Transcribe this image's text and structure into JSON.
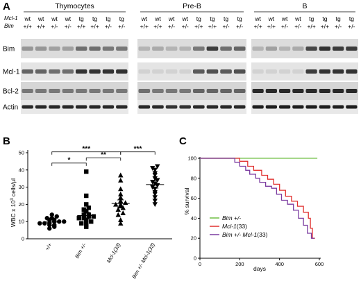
{
  "panels": {
    "a": {
      "letter": "A",
      "row_headers": [
        "Mcl-1",
        "Bim"
      ],
      "groups": [
        {
          "title": "Thymocytes",
          "lanes": [
            {
              "mcl1": "wt",
              "bim": "+/+"
            },
            {
              "mcl1": "wt",
              "bim": "+/+"
            },
            {
              "mcl1": "wt",
              "bim": "+/-"
            },
            {
              "mcl1": "wt",
              "bim": "+/-"
            },
            {
              "mcl1": "tg",
              "bim": "+/+"
            },
            {
              "mcl1": "tg",
              "bim": "+/+"
            },
            {
              "mcl1": "tg",
              "bim": "+/-"
            },
            {
              "mcl1": "tg",
              "bim": "+/-"
            }
          ]
        },
        {
          "title": "Pre-B",
          "lanes": [
            {
              "mcl1": "wt",
              "bim": "+/+"
            },
            {
              "mcl1": "wt",
              "bim": "+/+"
            },
            {
              "mcl1": "wt",
              "bim": "+/-"
            },
            {
              "mcl1": "wt",
              "bim": "+/-"
            },
            {
              "mcl1": "tg",
              "bim": "+/+"
            },
            {
              "mcl1": "tg",
              "bim": "+/+"
            },
            {
              "mcl1": "tg",
              "bim": "+/-"
            },
            {
              "mcl1": "tg",
              "bim": "+/-"
            }
          ]
        },
        {
          "title": "B",
          "lanes": [
            {
              "mcl1": "wt",
              "bim": "+/+"
            },
            {
              "mcl1": "wt",
              "bim": "+/+"
            },
            {
              "mcl1": "wt",
              "bim": "+/-"
            },
            {
              "mcl1": "wt",
              "bim": "+/-"
            },
            {
              "mcl1": "tg",
              "bim": "+/+"
            },
            {
              "mcl1": "tg",
              "bim": "+/+"
            },
            {
              "mcl1": "tg",
              "bim": "+/-"
            },
            {
              "mcl1": "tg",
              "bim": "+/-"
            }
          ]
        }
      ],
      "blots": [
        "Bim",
        "Mcl-1",
        "Bcl-2",
        "Actin"
      ]
    },
    "b": {
      "letter": "B",
      "ylabel_prefix": "WBC x 10",
      "ylabel_exp": "3",
      "ylabel_suffix": " cells/µl",
      "significance": [
        "*",
        "***",
        "**",
        "***"
      ]
    },
    "c": {
      "letter": "C",
      "ylabel": "% survival",
      "xlabel": "days"
    }
  },
  "chart_data": [
    {
      "type": "scatter",
      "categories": [
        "+/+",
        "Bim +/-",
        "Mcl-1(33)",
        "Bim +/- Mcl-1(33)"
      ],
      "ylim": [
        0,
        50
      ],
      "yticks": [
        0,
        10,
        20,
        30,
        40,
        50
      ],
      "series": [
        {
          "marker": "circle",
          "values": [
            6,
            7,
            8,
            8,
            9,
            9,
            9,
            10,
            10,
            10,
            11,
            11,
            12,
            12,
            13,
            14
          ],
          "mean": 9.8
        },
        {
          "marker": "square",
          "values": [
            7,
            8,
            9,
            10,
            10,
            11,
            12,
            12,
            13,
            13,
            14,
            14,
            16,
            17,
            18,
            20,
            25,
            39
          ],
          "mean": 13.5
        },
        {
          "marker": "triangle-up",
          "values": [
            9,
            11,
            14,
            15,
            17,
            18,
            19,
            20,
            20,
            21,
            22,
            24,
            26,
            29,
            34,
            37
          ],
          "mean": 20.5
        },
        {
          "marker": "triangle-down",
          "values": [
            20,
            22,
            24,
            26,
            27,
            29,
            30,
            31,
            32,
            33,
            34,
            35,
            37,
            38,
            40,
            41,
            42
          ],
          "mean": 31.5
        }
      ],
      "comparisons": [
        {
          "from": 0,
          "to": 1,
          "label": "*"
        },
        {
          "from": 0,
          "to": 2,
          "label": "***"
        },
        {
          "from": 1,
          "to": 2,
          "label": "**"
        },
        {
          "from": 2,
          "to": 3,
          "label": "***"
        }
      ]
    },
    {
      "type": "line",
      "xlabel": "days",
      "ylabel": "% survival",
      "xlim": [
        0,
        600
      ],
      "ylim": [
        0,
        100
      ],
      "xticks": [
        0,
        200,
        400,
        600
      ],
      "yticks": [
        0,
        20,
        40,
        60,
        80,
        100
      ],
      "series": [
        {
          "legend_main": "Bim +/-",
          "legend_suffix": "",
          "color": "#6fbf44",
          "points": [
            [
              0,
              100
            ],
            [
              590,
              100
            ]
          ]
        },
        {
          "legend_main": "Mcl-1",
          "legend_suffix": "(33)",
          "color": "#e0302f",
          "points": [
            [
              0,
              100
            ],
            [
              200,
              100
            ],
            [
              200,
              97
            ],
            [
              240,
              97
            ],
            [
              240,
              92
            ],
            [
              270,
              92
            ],
            [
              270,
              88
            ],
            [
              310,
              88
            ],
            [
              310,
              83
            ],
            [
              340,
              83
            ],
            [
              340,
              79
            ],
            [
              370,
              79
            ],
            [
              370,
              74
            ],
            [
              400,
              74
            ],
            [
              400,
              68
            ],
            [
              430,
              68
            ],
            [
              430,
              62
            ],
            [
              460,
              62
            ],
            [
              460,
              57
            ],
            [
              490,
              57
            ],
            [
              490,
              52
            ],
            [
              520,
              52
            ],
            [
              520,
              46
            ],
            [
              545,
              46
            ],
            [
              545,
              40
            ],
            [
              555,
              40
            ],
            [
              555,
              30
            ],
            [
              565,
              30
            ],
            [
              565,
              20
            ],
            [
              578,
              20
            ]
          ]
        },
        {
          "legend_main": "Bim +/- Mcl-1",
          "legend_suffix": "(33)",
          "color": "#7b3ca0",
          "points": [
            [
              0,
              100
            ],
            [
              175,
              100
            ],
            [
              175,
              96
            ],
            [
              200,
              96
            ],
            [
              200,
              92
            ],
            [
              230,
              92
            ],
            [
              230,
              88
            ],
            [
              250,
              88
            ],
            [
              250,
              84
            ],
            [
              280,
              84
            ],
            [
              280,
              80
            ],
            [
              300,
              80
            ],
            [
              300,
              76
            ],
            [
              330,
              76
            ],
            [
              330,
              72
            ],
            [
              360,
              72
            ],
            [
              360,
              70
            ],
            [
              385,
              70
            ],
            [
              385,
              64
            ],
            [
              410,
              64
            ],
            [
              410,
              58
            ],
            [
              440,
              58
            ],
            [
              440,
              54
            ],
            [
              470,
              54
            ],
            [
              470,
              48
            ],
            [
              495,
              48
            ],
            [
              495,
              40
            ],
            [
              520,
              40
            ],
            [
              520,
              33
            ],
            [
              540,
              33
            ],
            [
              540,
              25
            ],
            [
              560,
              25
            ],
            [
              560,
              20
            ],
            [
              575,
              20
            ]
          ]
        }
      ]
    }
  ]
}
